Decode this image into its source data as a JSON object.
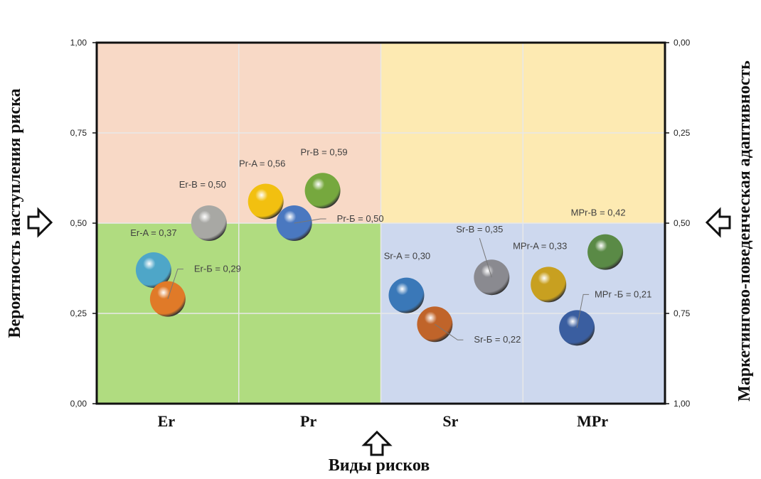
{
  "chart_data": {
    "type": "scatter",
    "subtype": "bubble",
    "xlabel": "Виды рисков",
    "ylabel": "Вероятность наступления риска",
    "y2label": "Маркетингово-поведенческая адаптивность",
    "categories": [
      "Er",
      "Pr",
      "Sr",
      "MPr"
    ],
    "xlim": [
      0,
      4
    ],
    "ylim": [
      0,
      1
    ],
    "y2lim": [
      1,
      0
    ],
    "yticks": [
      "0,00",
      "0,25",
      "0,50",
      "0,75",
      "1,00"
    ],
    "y2ticks": [
      "1,00",
      "0,75",
      "0,50",
      "0,25",
      "0,00"
    ],
    "grid": true,
    "quadrant_colors": {
      "top_left": "#f8d9c6",
      "top_right": "#fdeab2",
      "bottom_left": "#b0dc80",
      "bottom_right": "#cdd8ee"
    },
    "points": [
      {
        "label": "Er-A = 0,37",
        "x": 0.4,
        "y": 0.37,
        "color": "#4ea6c8"
      },
      {
        "label": "Er-Б = 0,29",
        "x": 0.5,
        "y": 0.29,
        "color": "#e07a28"
      },
      {
        "label": "Er-В = 0,50",
        "x": 0.79,
        "y": 0.5,
        "color": "#a8a8a4"
      },
      {
        "label": "Pr-A = 0,56",
        "x": 1.19,
        "y": 0.56,
        "color": "#f2c010"
      },
      {
        "label": "Pr-Б = 0,50",
        "x": 1.39,
        "y": 0.5,
        "color": "#4a78c0"
      },
      {
        "label": "Pr-В = 0,59",
        "x": 1.59,
        "y": 0.59,
        "color": "#76a83e"
      },
      {
        "label": "Sr-A = 0,30",
        "x": 2.18,
        "y": 0.3,
        "color": "#3a78b8"
      },
      {
        "label": "Sr-Б = 0,22",
        "x": 2.38,
        "y": 0.22,
        "color": "#c0642a"
      },
      {
        "label": "Sr-В = 0,35",
        "x": 2.78,
        "y": 0.35,
        "color": "#8a8a90"
      },
      {
        "label": "MPr-A = 0,33",
        "x": 3.18,
        "y": 0.33,
        "color": "#c8a020"
      },
      {
        "label": "MPr -Б = 0,21",
        "x": 3.38,
        "y": 0.21,
        "color": "#3a5ea0"
      },
      {
        "label": "MPr-В = 0,42",
        "x": 3.58,
        "y": 0.42,
        "color": "#5a8a46"
      }
    ]
  },
  "icons": {
    "left_arrow": "hollow-arrow-right-icon",
    "right_arrow": "hollow-arrow-left-icon",
    "bottom_arrow": "hollow-arrow-up-icon"
  }
}
